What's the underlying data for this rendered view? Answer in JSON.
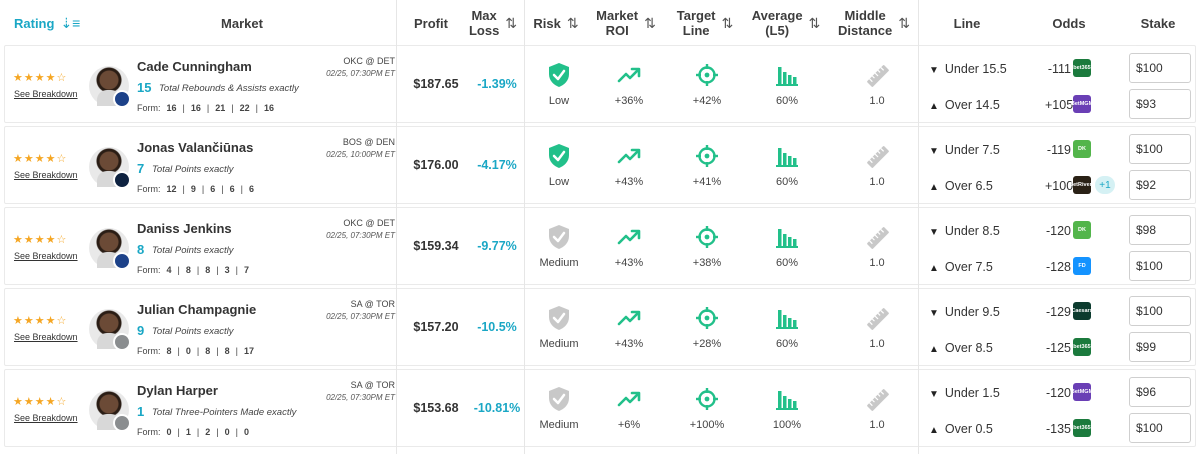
{
  "header": {
    "rating": "Rating",
    "market": "Market",
    "profit": "Profit",
    "max_loss": "Max\nLoss",
    "risk": "Risk",
    "market_roi": "Market\nROI",
    "target_line": "Target\nLine",
    "average": "Average\n(L5)",
    "middle_distance": "Middle\nDistance",
    "line": "Line",
    "odds": "Odds",
    "stake": "Stake"
  },
  "see_breakdown": "See Breakdown",
  "form_label": "Form:",
  "rows": [
    {
      "stars": "★★★★☆",
      "name": "Cade Cunningham",
      "line_num": "15",
      "market": "Total Rebounds & Assists exactly",
      "game": "OKC @ DET",
      "date": "02/25, 07:30PM ET",
      "form": [
        "16",
        "16",
        "21",
        "22",
        "16"
      ],
      "profit": "$187.65",
      "max_loss": "-1.39%",
      "risk": "Low",
      "risk_level": "low",
      "roi": "+36%",
      "target": "+42%",
      "average": "60%",
      "middle": "1.0",
      "team_color": "#1d4289",
      "legs": [
        {
          "dir": "▼",
          "text": "Under 15.5",
          "odds": "-111",
          "book": "bet365",
          "book_color": "#1b7a3d",
          "stake": "$100"
        },
        {
          "dir": "▲",
          "text": "Over 14.5",
          "odds": "+105",
          "book": "BetMGM",
          "book_color": "#6a3fb5",
          "stake": "$93"
        }
      ]
    },
    {
      "stars": "★★★★☆",
      "name": "Jonas Valančiūnas",
      "line_num": "7",
      "market": "Total Points exactly",
      "game": "BOS @ DEN",
      "date": "02/25, 10:00PM ET",
      "form": [
        "12",
        "9",
        "6",
        "6",
        "6"
      ],
      "profit": "$176.00",
      "max_loss": "-4.17%",
      "risk": "Low",
      "risk_level": "low",
      "roi": "+43%",
      "target": "+41%",
      "average": "60%",
      "middle": "1.0",
      "team_color": "#0e2240",
      "legs": [
        {
          "dir": "▼",
          "text": "Under 7.5",
          "odds": "-119",
          "book": "DK",
          "book_color": "#53b54b",
          "stake": "$100"
        },
        {
          "dir": "▲",
          "text": "Over 6.5",
          "odds": "+100",
          "book": "BetRivers",
          "book_color": "#2a2116",
          "stake": "$92",
          "extra": "+1"
        }
      ]
    },
    {
      "stars": "★★★★☆",
      "name": "Daniss Jenkins",
      "line_num": "8",
      "market": "Total Points exactly",
      "game": "OKC @ DET",
      "date": "02/25, 07:30PM ET",
      "form": [
        "4",
        "8",
        "8",
        "3",
        "7"
      ],
      "profit": "$159.34",
      "max_loss": "-9.77%",
      "risk": "Medium",
      "risk_level": "medium",
      "roi": "+43%",
      "target": "+38%",
      "average": "60%",
      "middle": "1.0",
      "team_color": "#1d4289",
      "legs": [
        {
          "dir": "▼",
          "text": "Under 8.5",
          "odds": "-120",
          "book": "DK",
          "book_color": "#53b54b",
          "stake": "$98"
        },
        {
          "dir": "▲",
          "text": "Over 7.5",
          "odds": "-128",
          "book": "FD",
          "book_color": "#1493ff",
          "stake": "$100"
        }
      ]
    },
    {
      "stars": "★★★★☆",
      "name": "Julian Champagnie",
      "line_num": "9",
      "market": "Total Points exactly",
      "game": "SA @ TOR",
      "date": "02/25, 07:30PM ET",
      "form": [
        "8",
        "0",
        "8",
        "8",
        "17"
      ],
      "profit": "$157.20",
      "max_loss": "-10.5%",
      "risk": "Medium",
      "risk_level": "medium",
      "roi": "+43%",
      "target": "+28%",
      "average": "60%",
      "middle": "1.0",
      "team_color": "#8a8d8f",
      "legs": [
        {
          "dir": "▼",
          "text": "Under 9.5",
          "odds": "-129",
          "book": "Caesars",
          "book_color": "#0c3b2e",
          "stake": "$100"
        },
        {
          "dir": "▲",
          "text": "Over 8.5",
          "odds": "-125",
          "book": "bet365",
          "book_color": "#1b7a3d",
          "stake": "$99"
        }
      ]
    },
    {
      "stars": "★★★★☆",
      "name": "Dylan Harper",
      "line_num": "1",
      "market": "Total Three-Pointers Made exactly",
      "game": "SA @ TOR",
      "date": "02/25, 07:30PM ET",
      "form": [
        "0",
        "1",
        "2",
        "0",
        "0"
      ],
      "profit": "$153.68",
      "max_loss": "-10.81%",
      "risk": "Medium",
      "risk_level": "medium",
      "roi": "+6%",
      "target": "+100%",
      "average": "100%",
      "middle": "1.0",
      "team_color": "#8a8d8f",
      "legs": [
        {
          "dir": "▼",
          "text": "Under 1.5",
          "odds": "-120",
          "book": "BetMGM",
          "book_color": "#6a3fb5",
          "stake": "$96"
        },
        {
          "dir": "▲",
          "text": "Over 0.5",
          "odds": "-135",
          "book": "bet365",
          "book_color": "#1b7a3d",
          "stake": "$100"
        }
      ]
    }
  ],
  "colors": {
    "accent": "#1aa7c5",
    "green": "#22c08a",
    "star": "#f5a623",
    "grey_icon": "#c8c8c8"
  }
}
